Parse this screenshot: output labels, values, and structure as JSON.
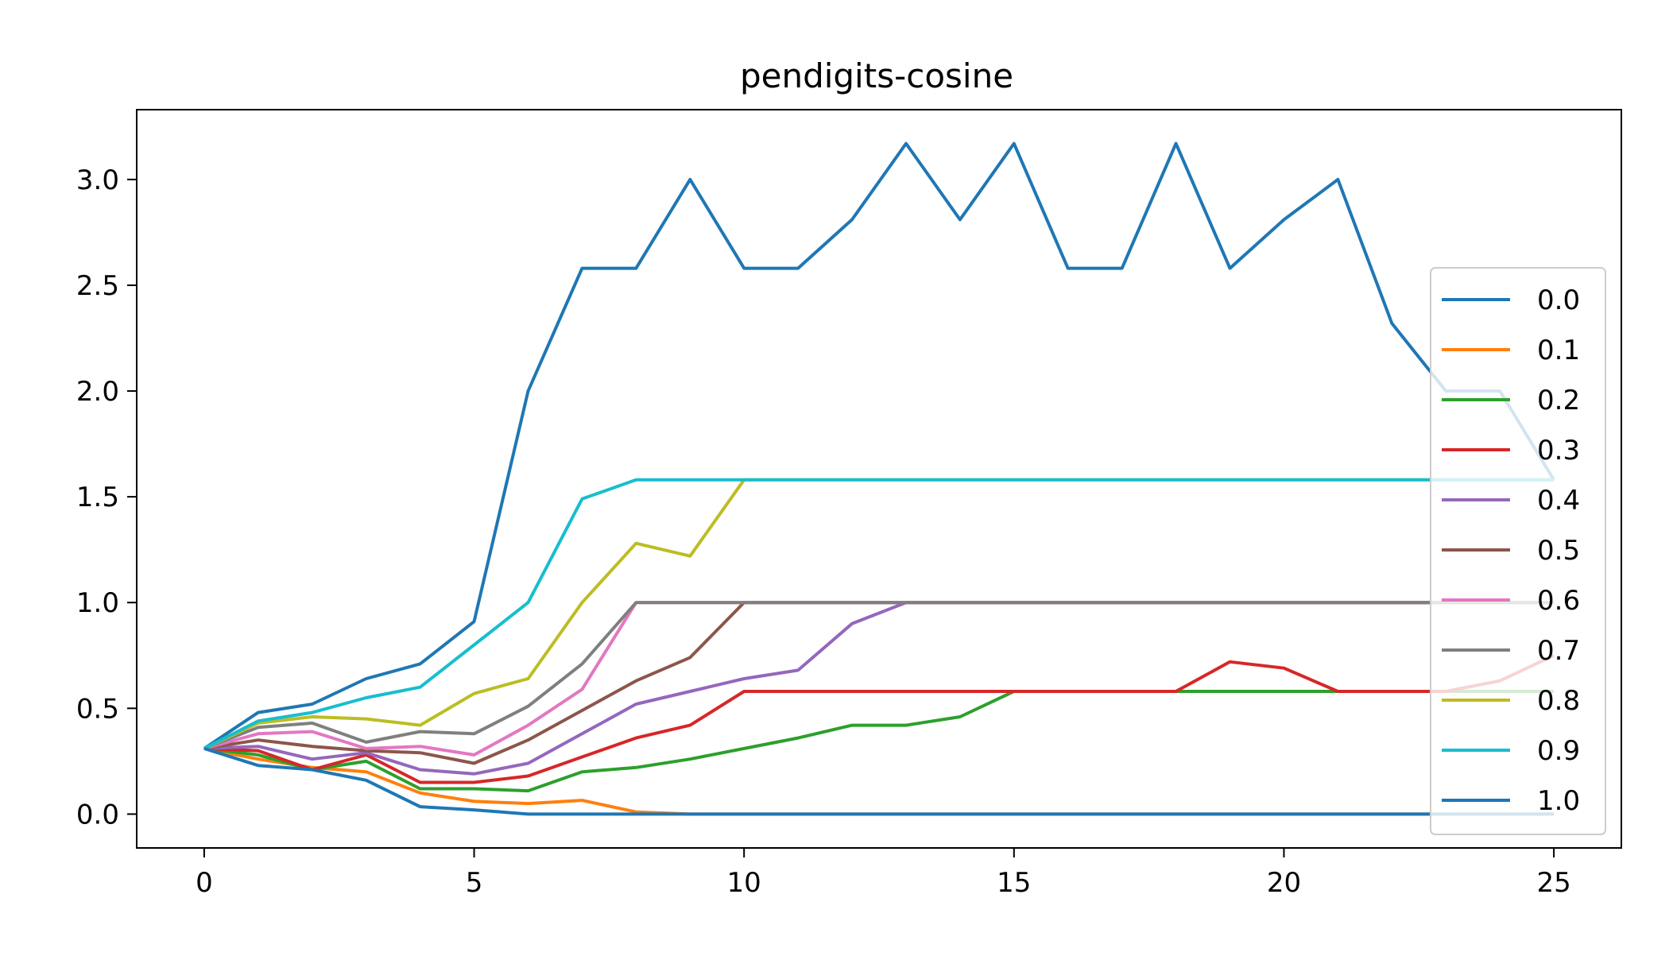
{
  "chart_data": {
    "type": "line",
    "title": "pendigits-cosine",
    "xlabel": "",
    "ylabel": "",
    "xlim": [
      -1.25,
      26.25
    ],
    "ylim": [
      -0.16,
      3.33
    ],
    "xticks": [
      0,
      5,
      10,
      15,
      20,
      25
    ],
    "xtick_labels": [
      "0",
      "5",
      "10",
      "15",
      "20",
      "25"
    ],
    "yticks": [
      0.0,
      0.5,
      1.0,
      1.5,
      2.0,
      2.5,
      3.0
    ],
    "ytick_labels": [
      "0.0",
      "0.5",
      "1.0",
      "1.5",
      "2.0",
      "2.5",
      "3.0"
    ],
    "grid": false,
    "legend_position": "right",
    "x": [
      0,
      1,
      2,
      3,
      4,
      5,
      6,
      7,
      8,
      9,
      10,
      11,
      12,
      13,
      14,
      15,
      16,
      17,
      18,
      19,
      20,
      21,
      22,
      23,
      24,
      25
    ],
    "series": [
      {
        "name": "0.0",
        "color": "#1f77b4",
        "values": [
          0.31,
          0.48,
          0.52,
          0.64,
          0.71,
          0.91,
          2.0,
          2.58,
          2.58,
          3.0,
          2.58,
          2.58,
          2.81,
          3.17,
          2.81,
          3.17,
          2.58,
          2.58,
          3.17,
          2.58,
          2.81,
          3.0,
          2.32,
          2.0,
          2.0,
          1.58
        ]
      },
      {
        "name": "0.1",
        "color": "#ff7f0e",
        "values": [
          0.31,
          0.26,
          0.22,
          0.2,
          0.1,
          0.06,
          0.05,
          0.065,
          0.01,
          0.0,
          0.0,
          0.0,
          0.0,
          0.0,
          0.0,
          0.0,
          0.0,
          0.0,
          0.0,
          0.0,
          0.0,
          0.0,
          0.0,
          0.0,
          0.0,
          0.0
        ]
      },
      {
        "name": "0.2",
        "color": "#2ca02c",
        "values": [
          0.31,
          0.28,
          0.21,
          0.25,
          0.12,
          0.12,
          0.11,
          0.2,
          0.22,
          0.26,
          0.31,
          0.36,
          0.42,
          0.42,
          0.46,
          0.58,
          0.58,
          0.58,
          0.58,
          0.58,
          0.58,
          0.58,
          0.58,
          0.58,
          0.58,
          0.58
        ]
      },
      {
        "name": "0.3",
        "color": "#d62728",
        "values": [
          0.31,
          0.3,
          0.21,
          0.28,
          0.15,
          0.15,
          0.18,
          0.27,
          0.36,
          0.42,
          0.58,
          0.58,
          0.58,
          0.58,
          0.58,
          0.58,
          0.58,
          0.58,
          0.58,
          0.72,
          0.69,
          0.58,
          0.58,
          0.58,
          0.63,
          0.75
        ]
      },
      {
        "name": "0.4",
        "color": "#9467bd",
        "values": [
          0.31,
          0.32,
          0.26,
          0.29,
          0.21,
          0.19,
          0.24,
          0.38,
          0.52,
          0.58,
          0.64,
          0.68,
          0.9,
          1.0,
          1.0,
          1.0,
          1.0,
          1.0,
          1.0,
          1.0,
          1.0,
          1.0,
          1.0,
          1.0,
          1.0,
          1.0
        ]
      },
      {
        "name": "0.5",
        "color": "#8c564b",
        "values": [
          0.31,
          0.35,
          0.32,
          0.3,
          0.29,
          0.24,
          0.35,
          0.49,
          0.63,
          0.74,
          1.0,
          1.0,
          1.0,
          1.0,
          1.0,
          1.0,
          1.0,
          1.0,
          1.0,
          1.0,
          1.0,
          1.0,
          1.0,
          1.0,
          1.0,
          1.0
        ]
      },
      {
        "name": "0.6",
        "color": "#e377c2",
        "values": [
          0.31,
          0.38,
          0.39,
          0.31,
          0.32,
          0.28,
          0.42,
          0.59,
          1.0,
          1.0,
          1.0,
          1.0,
          1.0,
          1.0,
          1.0,
          1.0,
          1.0,
          1.0,
          1.0,
          1.0,
          1.0,
          1.0,
          1.0,
          1.0,
          1.0,
          1.0
        ]
      },
      {
        "name": "0.7",
        "color": "#7f7f7f",
        "values": [
          0.31,
          0.41,
          0.43,
          0.34,
          0.39,
          0.38,
          0.51,
          0.71,
          1.0,
          1.0,
          1.0,
          1.0,
          1.0,
          1.0,
          1.0,
          1.0,
          1.0,
          1.0,
          1.0,
          1.0,
          1.0,
          1.0,
          1.0,
          1.0,
          1.0,
          1.0
        ]
      },
      {
        "name": "0.8",
        "color": "#bcbd22",
        "values": [
          0.31,
          0.43,
          0.46,
          0.45,
          0.42,
          0.57,
          0.64,
          1.0,
          1.28,
          1.22,
          1.58,
          1.58,
          1.58,
          1.58,
          1.58,
          1.58,
          1.58,
          1.58,
          1.58,
          1.58,
          1.58,
          1.58,
          1.58,
          1.58,
          1.58,
          1.58
        ]
      },
      {
        "name": "0.9",
        "color": "#17becf",
        "values": [
          0.31,
          0.44,
          0.48,
          0.55,
          0.6,
          0.8,
          1.0,
          1.49,
          1.58,
          1.58,
          1.58,
          1.58,
          1.58,
          1.58,
          1.58,
          1.58,
          1.58,
          1.58,
          1.58,
          1.58,
          1.58,
          1.58,
          1.58,
          1.58,
          1.58,
          1.58
        ]
      },
      {
        "name": "1.0",
        "color": "#1f77b4",
        "values": [
          0.31,
          0.23,
          0.21,
          0.16,
          0.035,
          0.02,
          0.0,
          0.0,
          0.0,
          0.0,
          0.0,
          0.0,
          0.0,
          0.0,
          0.0,
          0.0,
          0.0,
          0.0,
          0.0,
          0.0,
          0.0,
          0.0,
          0.0,
          0.0,
          0.0,
          0.0
        ]
      }
    ]
  }
}
